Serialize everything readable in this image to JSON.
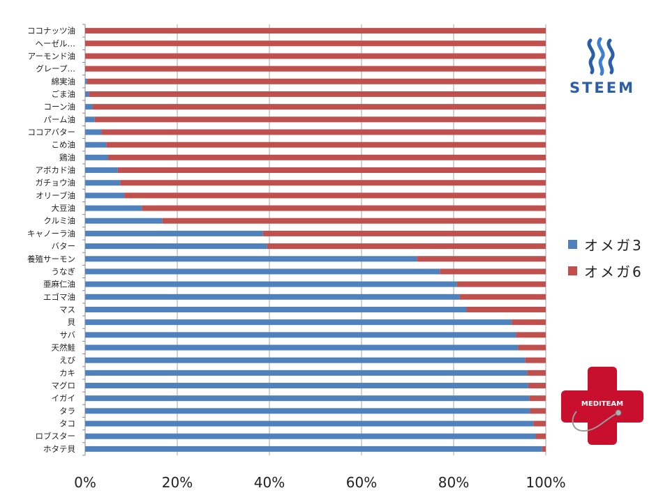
{
  "chart_data": {
    "type": "bar",
    "orientation": "horizontal",
    "stacked": "percent",
    "categories": [
      "ココナッツ油",
      "ヘーゼル…",
      "アーモンド油",
      "グレープ…",
      "綿実油",
      "ごま油",
      "コーン油",
      "パーム油",
      "ココアバター",
      "こめ油",
      "鶏油",
      "アボカド油",
      "ガチョウ油",
      "オリーブ油",
      "大豆油",
      "クルミ油",
      "キャノーラ油",
      "バター",
      "養殖サーモン",
      "うなぎ",
      "亜麻仁油",
      "エゴマ油",
      "マス",
      "貝",
      "サバ",
      "天然鮭",
      "えび",
      "カキ",
      "マグロ",
      "イガイ",
      "タラ",
      "タコ",
      "ロブスター",
      "ホタテ貝"
    ],
    "series": [
      {
        "name": "オメガ3",
        "values": [
          0,
          0,
          0,
          0,
          0.4,
          0.8,
          1.6,
          2.1,
          3.5,
          4.6,
          5.0,
          7.1,
          7.6,
          8.5,
          12.3,
          16.7,
          38.6,
          39.5,
          72.0,
          77.0,
          80.7,
          81.3,
          82.8,
          92.6,
          93.5,
          94.0,
          95.5,
          96.0,
          96.2,
          96.4,
          96.6,
          97.3,
          97.8,
          99.2
        ]
      },
      {
        "name": "オメガ6",
        "values": [
          100,
          100,
          100,
          100,
          99.6,
          99.2,
          98.4,
          97.9,
          96.5,
          95.4,
          95.0,
          92.9,
          92.4,
          91.5,
          87.7,
          83.3,
          61.4,
          60.5,
          28.0,
          23.0,
          19.3,
          18.7,
          17.2,
          7.4,
          6.5,
          6.0,
          4.5,
          4.0,
          3.8,
          3.6,
          3.4,
          2.7,
          2.2,
          0.8
        ]
      }
    ],
    "x_ticks": [
      "0%",
      "20%",
      "40%",
      "60%",
      "80%",
      "100%"
    ],
    "xlim": [
      0,
      100
    ],
    "grid": "vertical",
    "legend_position": "right",
    "colors": {
      "omega3": "#4f81bd",
      "omega6": "#c0504d"
    }
  },
  "logos": {
    "steem": {
      "text": "STEEM",
      "color": "#2a5ea8"
    },
    "mediteam": {
      "text": "MEDITEAM",
      "color": "#c8102e"
    }
  }
}
